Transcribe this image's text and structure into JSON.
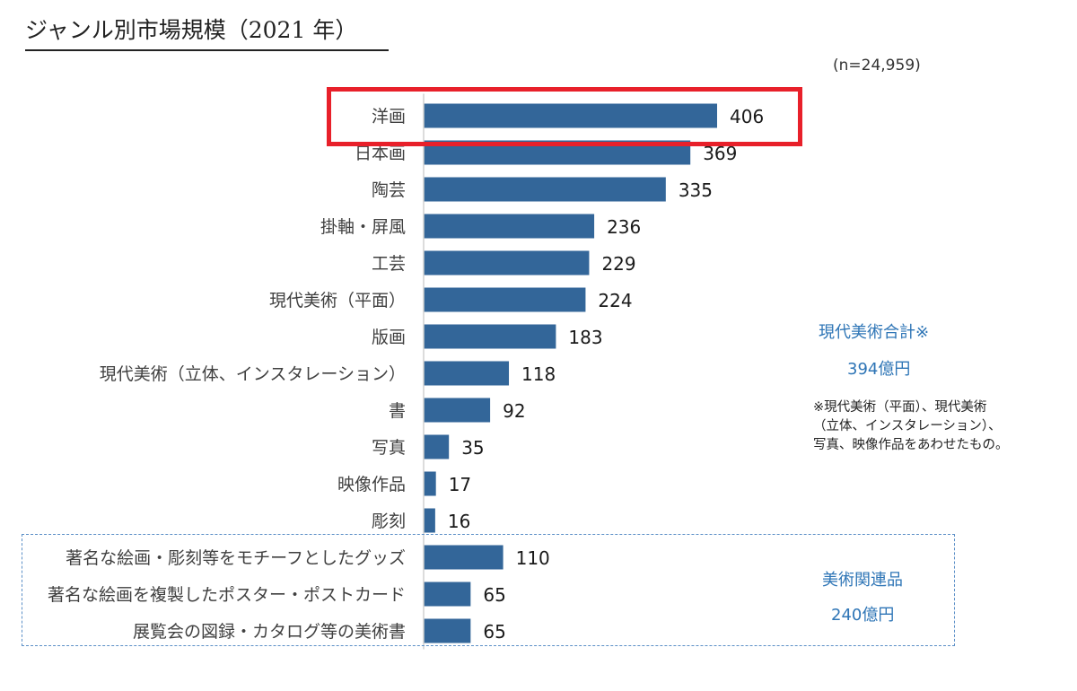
{
  "title": "ジャンル別市場規模（2021 年）",
  "sample_note": "(n=24,959)",
  "chart_data": {
    "type": "bar",
    "orientation": "horizontal",
    "categories": [
      "洋画",
      "日本画",
      "陶芸",
      "掛軸・屏風",
      "工芸",
      "現代美術（平面）",
      "版画",
      "現代美術（立体、インスタレーション）",
      "書",
      "写真",
      "映像作品",
      "彫刻",
      "著名な絵画・彫刻等をモチーフとしたグッズ",
      "著名な絵画を複製したポスター・ポストカード",
      "展覧会の図録・カタログ等の美術書"
    ],
    "values": [
      406,
      369,
      335,
      236,
      229,
      224,
      183,
      118,
      92,
      35,
      17,
      16,
      110,
      65,
      65
    ],
    "value_labels": [
      "406",
      "369",
      "335",
      "236",
      "229",
      "224",
      "183",
      "118",
      "92",
      "35",
      "17",
      "16",
      "110",
      "65",
      "65"
    ],
    "bar_color": "#336699",
    "xlim": [
      0,
      406
    ],
    "axis_line": true,
    "grid": false,
    "legend": "none",
    "highlighted_category": "洋画",
    "highlight_color": "#e8202a"
  },
  "annotations": {
    "contemporary_total_label": "現代美術合計※",
    "contemporary_total_value": "394億円",
    "footnote_lines": [
      "※現代美術（平面）、現代美術",
      "（立体、インスタレーション）、",
      "写真、映像作品をあわせたもの。"
    ],
    "related_label": "美術関連品",
    "related_value": "240億円",
    "accent_color": "#2e75b6"
  }
}
